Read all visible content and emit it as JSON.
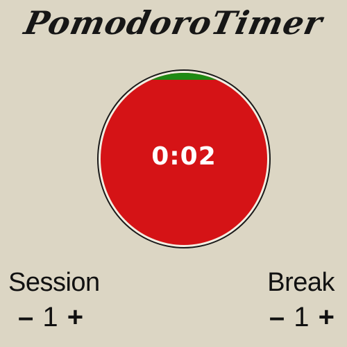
{
  "app": {
    "title": "PomodoroTimer"
  },
  "timer": {
    "time": "0:02",
    "progress_fraction": 0.04,
    "colors": {
      "remaining": "#d51316",
      "elapsed": "#1f8a14",
      "background": "#dcd6c4"
    }
  },
  "session": {
    "label": "Session",
    "decrement": "–",
    "value": "1",
    "increment": "+"
  },
  "break": {
    "label": "Break",
    "decrement": "–",
    "value": "1",
    "increment": "+"
  }
}
